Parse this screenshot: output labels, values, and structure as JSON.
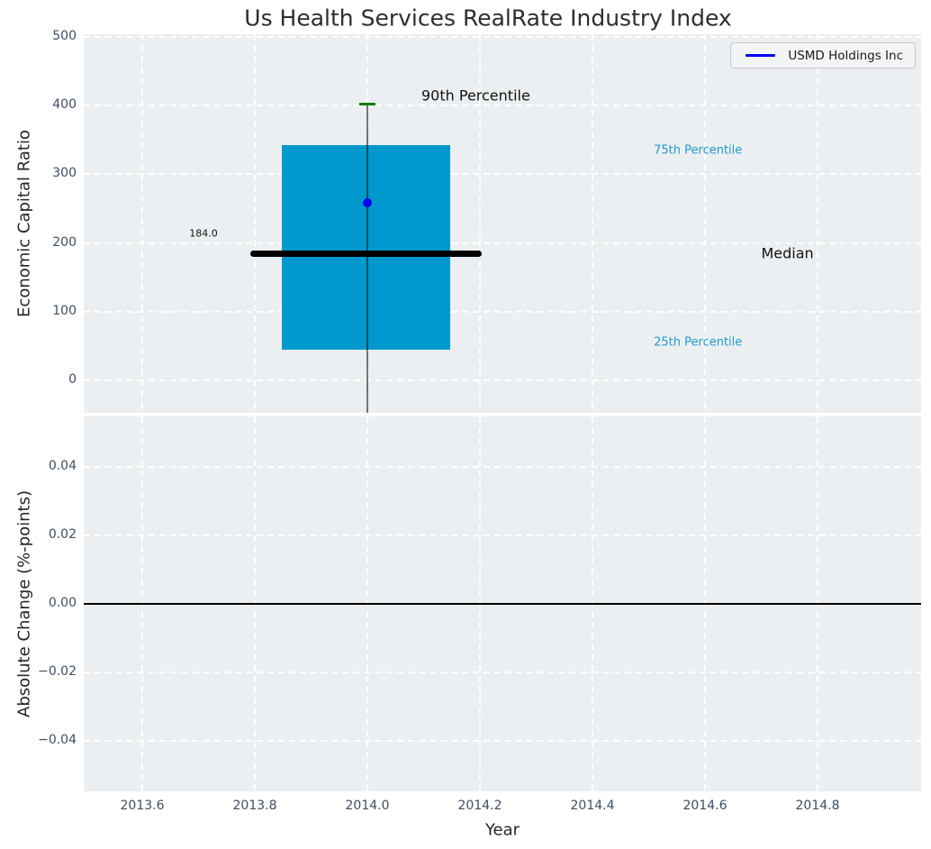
{
  "colors": {
    "figure_bg": "#ffffff",
    "axes_bg": "#eceff1",
    "grid": "#ffffff",
    "tick_label": "#3e4e62",
    "text": "#262626",
    "box_fill": "#0099cd",
    "median_black": "#000000",
    "p90_green": "#008000",
    "point_blue": "#0000f0",
    "percentile_label_cyan": "#1e9bcd"
  },
  "chart_data": [
    {
      "type": "boxplot",
      "title": "Us Health Services RealRate Industry Index",
      "ylabel": "Economic Capital Ratio",
      "xlim": [
        2013.496,
        2014.984
      ],
      "ylim": [
        -47.2,
        504
      ],
      "grid": "white-dashed",
      "legend_position": "upper right",
      "xticks": [
        {
          "v": 2013.6,
          "label": "2013.6"
        },
        {
          "v": 2013.8,
          "label": "2013.8"
        },
        {
          "v": 2014.0,
          "label": "2014.0"
        },
        {
          "v": 2014.2,
          "label": "2014.2"
        },
        {
          "v": 2014.4,
          "label": "2014.4"
        },
        {
          "v": 2014.6,
          "label": "2014.6"
        },
        {
          "v": 2014.8,
          "label": "2014.8"
        }
      ],
      "show_xtick_labels": false,
      "yticks": [
        {
          "v": 0,
          "label": "0"
        },
        {
          "v": 100,
          "label": "100"
        },
        {
          "v": 200,
          "label": "200"
        },
        {
          "v": 300,
          "label": "300"
        },
        {
          "v": 400,
          "label": "400"
        },
        {
          "v": 500,
          "label": "500"
        }
      ],
      "box": {
        "x_center": 2014.0,
        "x_left": 2013.848,
        "x_right": 2014.147,
        "q25": 45,
        "median": 184.0,
        "q75": 343,
        "p90": 402,
        "whisker_low": -60,
        "median_x_left": 2013.792,
        "median_x_right": 2014.203,
        "cap_x_left": 2013.986,
        "cap_x_right": 2014.014,
        "box_color": "#0099cd",
        "median_color": "#000000",
        "cap_color": "#008000",
        "median_value_label": "184.0"
      },
      "points": [
        {
          "series": "USMD Holdings Inc",
          "x": 2014.0,
          "y": 258,
          "color": "#0000f0"
        }
      ],
      "annotations": [
        {
          "id": "annotation-90th-percentile",
          "text": "90th Percentile",
          "x": 2014.096,
          "y": 415,
          "ha": "left",
          "color": "#111111",
          "size": 16
        },
        {
          "id": "annotation-75th-percentile",
          "text": "75th Percentile",
          "x": 2014.509,
          "y": 335,
          "ha": "left",
          "color": "#1e9bcd",
          "size": 13
        },
        {
          "id": "annotation-median",
          "text": "Median",
          "x": 2014.7,
          "y": 185,
          "ha": "left",
          "color": "#111111",
          "size": 16
        },
        {
          "id": "annotation-25th-percentile",
          "text": "25th Percentile",
          "x": 2014.509,
          "y": 55,
          "ha": "left",
          "color": "#1e9bcd",
          "size": 13
        },
        {
          "id": "annotation-median-value",
          "text": "184.0",
          "x": 2013.734,
          "y": 214,
          "ha": "right",
          "color": "#111111",
          "size": 11
        }
      ],
      "legend": {
        "label": "USMD Holdings Inc",
        "line_color": "#0000f0"
      }
    },
    {
      "type": "line",
      "ylabel": "Absolute Change (%-points)",
      "xlabel": "Year",
      "xlim": [
        2013.496,
        2014.984
      ],
      "ylim": [
        -0.0547,
        0.0547
      ],
      "grid": "white-dashed",
      "xticks": [
        {
          "v": 2013.6,
          "label": "2013.6"
        },
        {
          "v": 2013.8,
          "label": "2013.8"
        },
        {
          "v": 2014.0,
          "label": "2014.0"
        },
        {
          "v": 2014.2,
          "label": "2014.2"
        },
        {
          "v": 2014.4,
          "label": "2014.4"
        },
        {
          "v": 2014.6,
          "label": "2014.6"
        },
        {
          "v": 2014.8,
          "label": "2014.8"
        }
      ],
      "show_xtick_labels": true,
      "yticks": [
        {
          "v": 0.04,
          "label": "0.04"
        },
        {
          "v": 0.02,
          "label": "0.02"
        },
        {
          "v": 0.0,
          "label": "0.00"
        },
        {
          "v": -0.02,
          "label": "−0.02"
        },
        {
          "v": -0.04,
          "label": "−0.04"
        }
      ],
      "zero_line": {
        "y": 0.0,
        "color": "#000000"
      },
      "series": []
    }
  ]
}
